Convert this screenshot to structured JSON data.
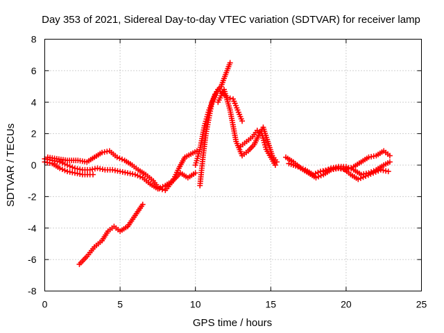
{
  "chart_data": {
    "type": "scatter",
    "title": "Day 353 of 2021, Sidereal Day-to-day VTEC variation (SDTVAR) for receiver lamp",
    "xlabel": "GPS time / hours",
    "ylabel": "SDTVAR / TECUs",
    "xlim": [
      0,
      25
    ],
    "ylim": [
      -8,
      8
    ],
    "xticks": [
      0,
      5,
      10,
      15,
      20,
      25
    ],
    "yticks": [
      -8,
      -6,
      -4,
      -2,
      0,
      2,
      4,
      6,
      8
    ],
    "grid": true,
    "marker": "plus",
    "color": "#ff0000",
    "series": [
      {
        "name": "track-1",
        "x": [
          0.0,
          0.5,
          1.0,
          1.5,
          2.0,
          2.5,
          3.0,
          3.5,
          4.0,
          4.5,
          5.0,
          5.5,
          6.0,
          6.5,
          7.0,
          7.5,
          8.0,
          8.5,
          9.0,
          9.5,
          10.0
        ],
        "y": [
          0.4,
          0.3,
          0.2,
          0.0,
          -0.2,
          -0.3,
          -0.3,
          -0.2,
          -0.3,
          -0.3,
          -0.4,
          -0.5,
          -0.6,
          -0.8,
          -1.2,
          -1.5,
          -1.3,
          -1.0,
          -0.5,
          -0.8,
          -0.5
        ]
      },
      {
        "name": "track-2",
        "x": [
          0.0,
          0.5,
          1.0,
          1.5,
          2.0,
          2.5,
          3.0,
          3.2
        ],
        "y": [
          0.2,
          0.1,
          -0.2,
          -0.4,
          -0.5,
          -0.6,
          -0.6,
          -0.6
        ]
      },
      {
        "name": "track-3",
        "x": [
          0.2,
          0.8,
          1.5,
          2.2,
          2.8,
          3.3,
          3.8,
          4.3,
          4.8,
          5.3,
          5.8,
          6.2,
          6.7,
          7.2,
          7.6,
          8.0,
          8.5,
          8.9,
          9.3,
          9.7,
          10.1
        ],
        "y": [
          0.5,
          0.4,
          0.3,
          0.3,
          0.2,
          0.5,
          0.8,
          0.9,
          0.5,
          0.3,
          0.0,
          -0.3,
          -0.6,
          -1.0,
          -1.5,
          -1.6,
          -1.0,
          -0.2,
          0.5,
          0.7,
          0.9
        ]
      },
      {
        "name": "track-4",
        "x": [
          2.3,
          2.8,
          3.3,
          3.8,
          4.2,
          4.6,
          5.0,
          5.5,
          6.0,
          6.5
        ],
        "y": [
          -6.3,
          -5.8,
          -5.2,
          -4.8,
          -4.2,
          -3.9,
          -4.2,
          -3.9,
          -3.2,
          -2.5
        ]
      },
      {
        "name": "track-5",
        "x": [
          10.3,
          10.5,
          10.7,
          10.9,
          11.1,
          11.3,
          11.5,
          11.7,
          11.9,
          12.1,
          12.3
        ],
        "y": [
          -1.3,
          0.5,
          2.0,
          3.0,
          4.0,
          4.5,
          4.8,
          5.0,
          5.5,
          6.0,
          6.5
        ]
      },
      {
        "name": "track-6",
        "x": [
          10.0,
          10.3,
          10.6,
          10.9,
          11.2,
          11.5,
          11.8,
          12.1,
          12.5,
          12.8,
          13.1
        ],
        "y": [
          0.0,
          1.0,
          2.5,
          3.5,
          4.2,
          4.8,
          4.6,
          4.3,
          4.2,
          3.5,
          2.8
        ]
      },
      {
        "name": "track-7",
        "x": [
          11.5,
          11.9,
          12.3,
          12.7,
          13.1,
          13.5,
          13.9,
          14.2,
          14.5,
          14.8,
          15.1,
          15.4
        ],
        "y": [
          4.0,
          4.8,
          3.5,
          1.5,
          0.6,
          0.9,
          1.3,
          1.9,
          2.4,
          1.5,
          0.6,
          0.2
        ]
      },
      {
        "name": "track-8",
        "x": [
          13.0,
          13.4,
          13.8,
          14.1,
          14.4,
          14.7,
          15.0,
          15.3
        ],
        "y": [
          1.2,
          1.5,
          1.8,
          2.2,
          2.0,
          1.0,
          0.5,
          0.0
        ]
      },
      {
        "name": "track-9",
        "x": [
          16.0,
          16.5,
          17.0,
          17.5,
          18.0,
          18.5,
          19.0,
          19.5,
          20.0,
          20.5,
          21.0,
          21.5,
          22.0,
          22.5,
          22.9
        ],
        "y": [
          0.5,
          0.2,
          -0.2,
          -0.5,
          -0.8,
          -0.6,
          -0.3,
          -0.2,
          -0.3,
          -0.1,
          0.2,
          0.5,
          0.6,
          0.9,
          0.6
        ]
      },
      {
        "name": "track-10",
        "x": [
          16.2,
          16.8,
          17.3,
          17.8,
          18.3,
          18.8,
          19.3,
          19.8,
          20.3,
          20.8,
          21.3,
          21.8,
          22.3,
          22.8
        ],
        "y": [
          0.1,
          -0.1,
          -0.3,
          -0.6,
          -0.4,
          -0.3,
          -0.2,
          -0.2,
          -0.6,
          -0.9,
          -0.7,
          -0.5,
          -0.3,
          -0.4
        ]
      },
      {
        "name": "track-11",
        "x": [
          18.5,
          19.0,
          19.5,
          20.0,
          20.5,
          21.0,
          21.5,
          22.0,
          22.5,
          22.9
        ],
        "y": [
          -0.4,
          -0.2,
          -0.1,
          -0.1,
          -0.3,
          -0.6,
          -0.5,
          -0.3,
          0.0,
          0.2
        ]
      }
    ]
  }
}
